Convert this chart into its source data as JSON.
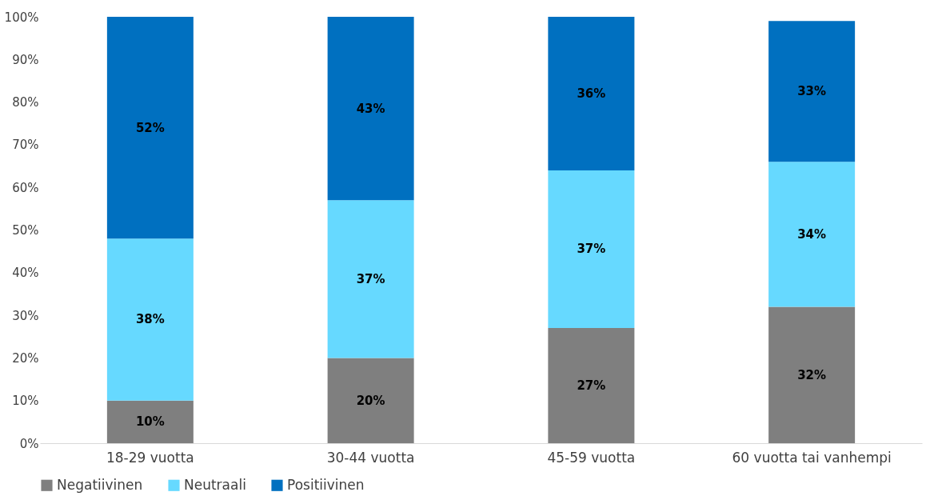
{
  "chart_data": {
    "type": "bar",
    "stacked": true,
    "categories": [
      "18-29 vuotta",
      "30-44 vuotta",
      "45-59 vuotta",
      "60 vuotta tai vanhempi"
    ],
    "series": [
      {
        "name": "Negatiivinen",
        "color": "#7f7f7f",
        "values": [
          10,
          20,
          27,
          32
        ],
        "value_labels": [
          "10%",
          "20%",
          "27%",
          "32%"
        ]
      },
      {
        "name": "Neutraali",
        "color": "#66d9ff",
        "values": [
          38,
          37,
          37,
          34
        ],
        "value_labels": [
          "38%",
          "37%",
          "37%",
          "34%"
        ]
      },
      {
        "name": "Positiivinen",
        "color": "#0070c0",
        "values": [
          52,
          43,
          36,
          33
        ],
        "value_labels": [
          "52%",
          "43%",
          "36%",
          "33%"
        ]
      }
    ],
    "ylim": [
      0,
      100
    ],
    "yticks": [
      {
        "value": 0,
        "label": "0%"
      },
      {
        "value": 10,
        "label": "10%"
      },
      {
        "value": 20,
        "label": "20%"
      },
      {
        "value": 30,
        "label": "30%"
      },
      {
        "value": 40,
        "label": "40%"
      },
      {
        "value": 50,
        "label": "50%"
      },
      {
        "value": 60,
        "label": "60%"
      },
      {
        "value": 70,
        "label": "70%"
      },
      {
        "value": 80,
        "label": "80%"
      },
      {
        "value": 90,
        "label": "90%"
      },
      {
        "value": 100,
        "label": "100%"
      }
    ],
    "legend": "bottom",
    "grid": false
  }
}
